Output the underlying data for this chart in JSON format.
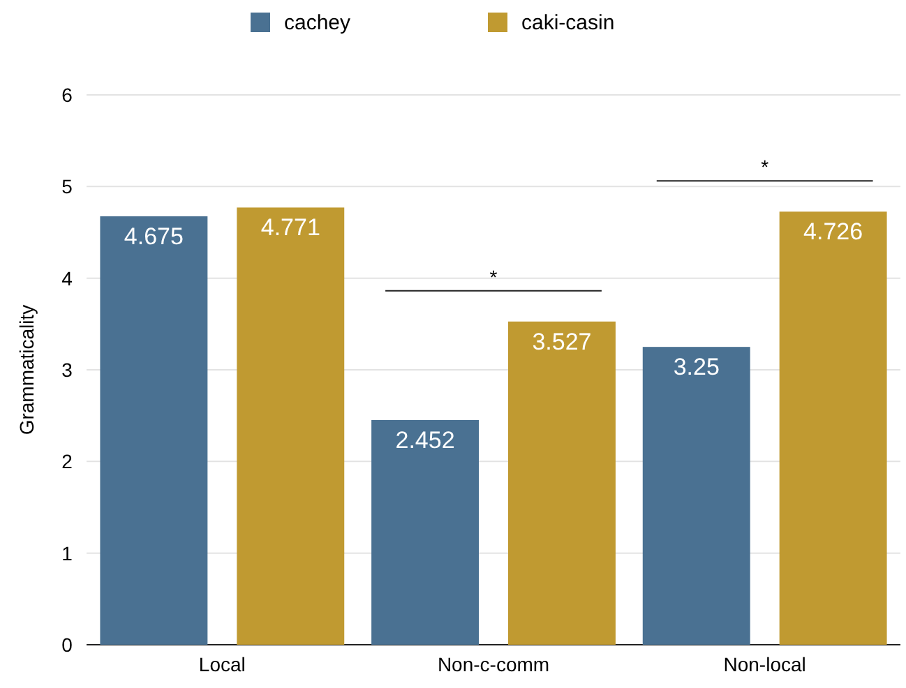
{
  "chart_data": {
    "type": "bar",
    "ylabel": "Grammaticality",
    "categories": [
      "Local",
      "Non-c-comm",
      "Non-local"
    ],
    "series": [
      {
        "name": "cachey",
        "color": "#4a7192",
        "values": [
          4.675,
          2.452,
          3.25
        ]
      },
      {
        "name": "caki-casin",
        "color": "#c09a31",
        "values": [
          4.771,
          3.527,
          4.726
        ]
      }
    ],
    "ylim": [
      0,
      6
    ],
    "yticks": [
      0,
      1,
      2,
      3,
      4,
      5,
      6
    ],
    "grid": "y",
    "legend": "top",
    "data_labels": true,
    "annotations": [
      "*",
      "*"
    ]
  }
}
